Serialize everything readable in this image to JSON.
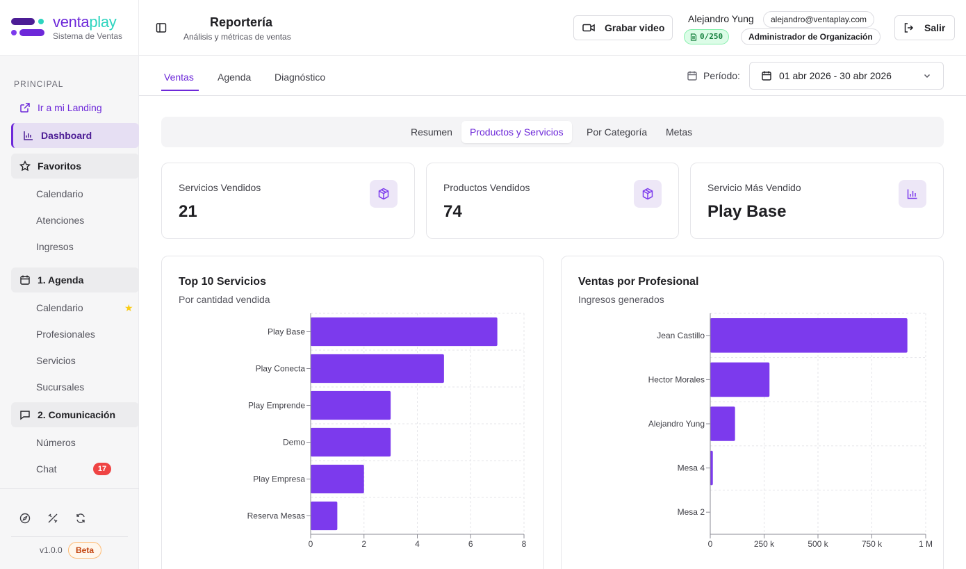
{
  "brand": {
    "name_part1": "venta",
    "name_part2": "play",
    "subtitle": "Sistema de Ventas"
  },
  "sidebar": {
    "section_label": "PRINCIPAL",
    "landing_link": "Ir a mi Landing",
    "dashboard": "Dashboard",
    "favoritos": {
      "label": "Favoritos",
      "items": [
        "Calendario",
        "Atenciones",
        "Ingresos"
      ]
    },
    "agenda": {
      "label": "1. Agenda",
      "items": [
        "Calendario",
        "Profesionales",
        "Servicios",
        "Sucursales"
      ]
    },
    "comunicacion": {
      "label": "2. Comunicación",
      "items": [
        "Números",
        "Chat"
      ]
    },
    "chat_badge": "17",
    "version": "v1.0.0",
    "beta": "Beta"
  },
  "header": {
    "title": "Reportería",
    "subtitle": "Análisis y métricas de ventas",
    "record_button": "Grabar video",
    "user_name": "Alejandro Yung",
    "user_email": "alejandro@ventaplay.com",
    "quota": "0/250",
    "role": "Administrador de Organización",
    "logout_button": "Salir"
  },
  "tabs": {
    "items": [
      "Ventas",
      "Agenda",
      "Diagnóstico"
    ],
    "active": "Ventas"
  },
  "periodo": {
    "label": "Período:",
    "value": "01 abr 2026 - 30 abr 2026"
  },
  "subtabs": {
    "items": [
      "Resumen",
      "Productos y Servicios",
      "Por Categoría",
      "Metas"
    ],
    "active": "Productos y Servicios"
  },
  "stats": [
    {
      "label": "Servicios Vendidos",
      "value": "21",
      "icon": "package-icon"
    },
    {
      "label": "Productos Vendidos",
      "value": "74",
      "icon": "package-icon"
    },
    {
      "label": "Servicio Más Vendido",
      "value": "Play Base",
      "icon": "bar-chart-icon"
    }
  ],
  "colors": {
    "accent": "#6d28d9",
    "bar": "#7c3aed",
    "badge_red": "#ef4444"
  },
  "chart_data": [
    {
      "type": "bar",
      "orientation": "horizontal",
      "title": "Top 10 Servicios",
      "subtitle": "Por cantidad vendida",
      "categories": [
        "Play Base",
        "Play Conecta",
        "Play Emprende",
        "Demo",
        "Play Empresa",
        "Reserva Mesas"
      ],
      "values": [
        7,
        5,
        3,
        3,
        2,
        1
      ],
      "xlim": [
        0,
        8
      ],
      "xticks": [
        "0",
        "2",
        "4",
        "6",
        "8"
      ],
      "grid": true
    },
    {
      "type": "bar",
      "orientation": "horizontal",
      "title": "Ventas por Profesional",
      "subtitle": "Ingresos generados",
      "categories": [
        "Jean Castillo",
        "Hector Morales",
        "Alejandro Yung",
        "Mesa 4",
        "Mesa 2"
      ],
      "values": [
        915000,
        275000,
        115000,
        12000,
        0
      ],
      "xlim": [
        0,
        1000000
      ],
      "xticks": [
        "0",
        "250 k",
        "500 k",
        "750 k",
        "1 M"
      ],
      "grid": true
    }
  ]
}
